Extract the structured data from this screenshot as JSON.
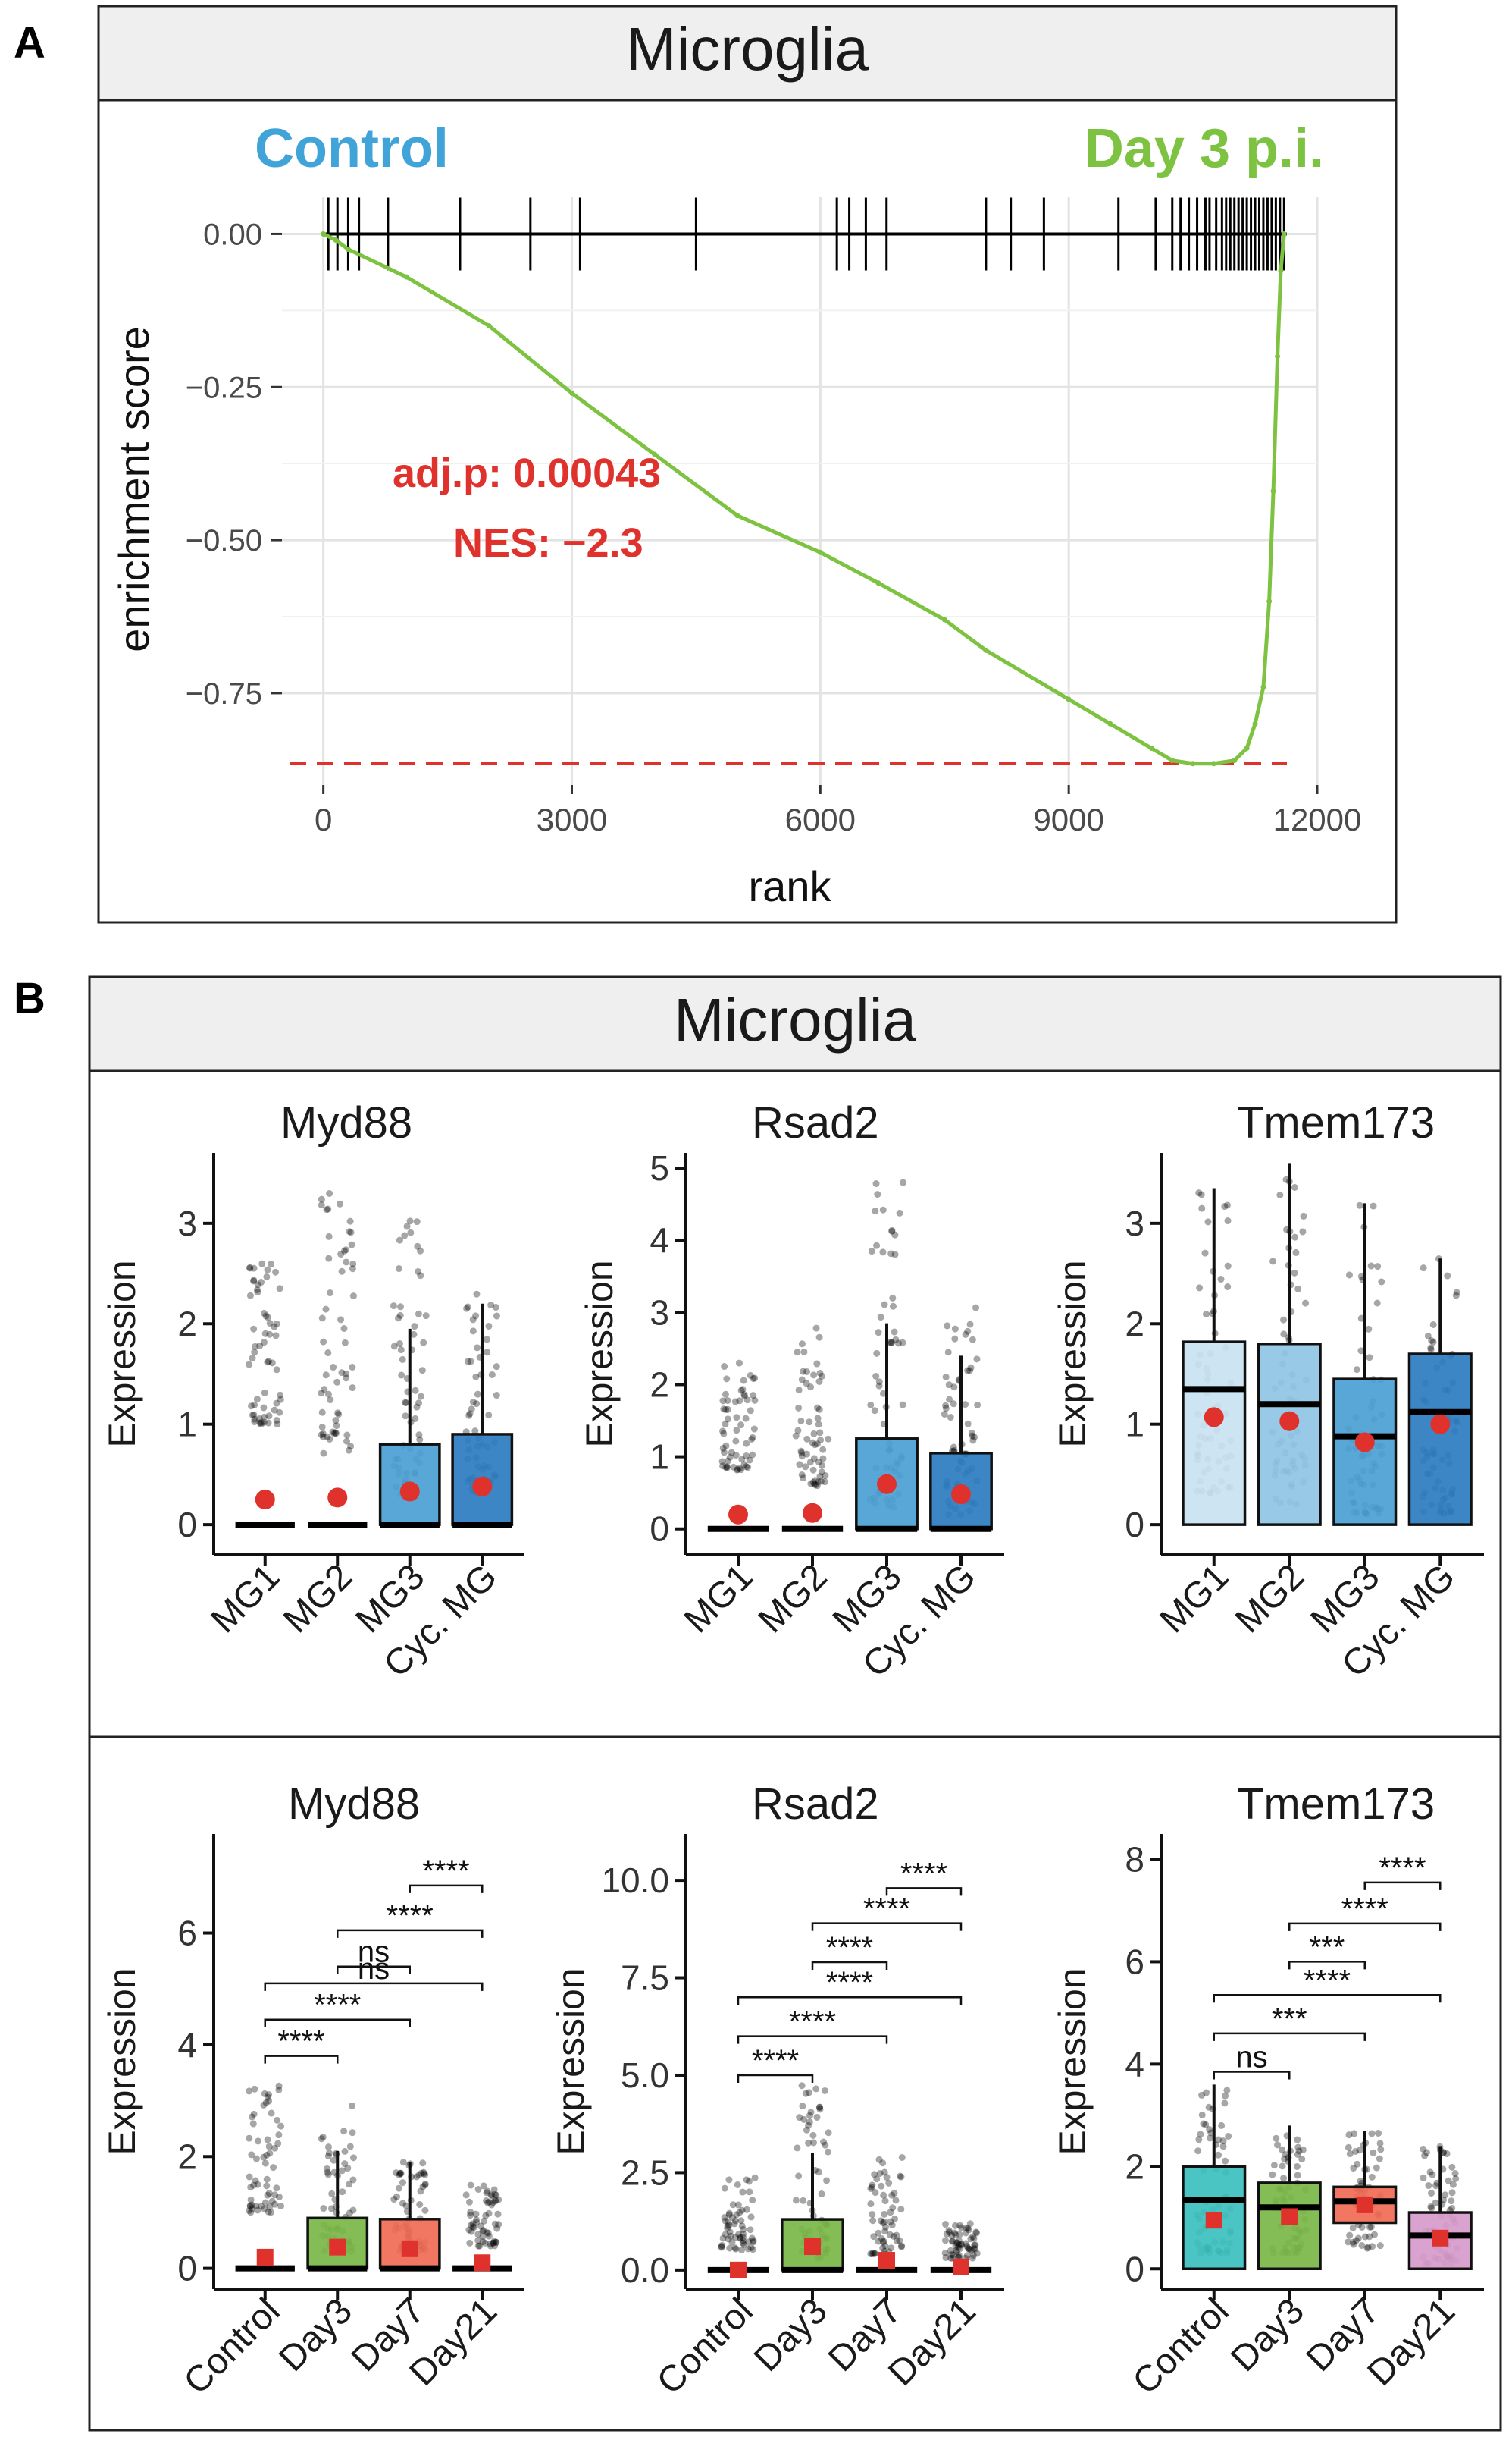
{
  "panel_a": {
    "letter": "A",
    "strip_title": "Microglia",
    "left_label": "Control",
    "right_label": "Day 3 p.i.",
    "annotation_p": "adj.p:  0.00043",
    "annotation_nes": "NES: −2.3",
    "colors": {
      "control": "#40a4d8",
      "day3": "#7ec242",
      "stat": "#e0322d"
    }
  },
  "panel_b": {
    "letter": "B",
    "strip_title": "Microglia",
    "colors": {
      "point": "#e0322d",
      "box_edge": "#111111"
    }
  },
  "chart_data": [
    {
      "id": "gsea",
      "type": "line",
      "title": "Microglia",
      "xlabel": "rank",
      "ylabel": "enrichment score",
      "xlim": [
        -500,
        12000
      ],
      "ylim": [
        -0.9,
        0.06
      ],
      "xticks": [
        0,
        3000,
        6000,
        9000,
        12000
      ],
      "xtick_labels": [
        "0",
        "3000",
        "6000",
        "9000",
        "12000"
      ],
      "yticks": [
        0.0,
        -0.25,
        -0.5,
        -0.75
      ],
      "ytick_labels": [
        "0.00",
        "−0.25",
        "−0.50",
        "−0.75"
      ],
      "x": [
        0,
        150,
        300,
        1000,
        2000,
        3000,
        4000,
        5000,
        6000,
        6700,
        7500,
        8000,
        9000,
        9500,
        10000,
        10250,
        10500,
        10750,
        11000,
        11150,
        11250,
        11350,
        11420,
        11470,
        11520,
        11560,
        11600
      ],
      "y": [
        0.0,
        -0.01,
        -0.025,
        -0.07,
        -0.15,
        -0.26,
        -0.36,
        -0.46,
        -0.52,
        -0.57,
        -0.63,
        -0.68,
        -0.76,
        -0.8,
        -0.84,
        -0.86,
        -0.865,
        -0.865,
        -0.86,
        -0.84,
        -0.8,
        -0.74,
        -0.6,
        -0.42,
        -0.2,
        -0.06,
        0.0
      ],
      "hits": [
        60,
        170,
        300,
        430,
        780,
        1650,
        2500,
        3100,
        4500,
        6200,
        6350,
        6550,
        6800,
        8000,
        8300,
        8700,
        9600,
        10050,
        10250,
        10350,
        10450,
        10550,
        10650,
        10700,
        10780,
        10850,
        10900,
        10950,
        11000,
        11050,
        11100,
        11150,
        11200,
        11250,
        11300,
        11350,
        11400,
        11450,
        11500,
        11550,
        11600
      ],
      "min_es": -0.865
    },
    {
      "id": "cl-myd88",
      "type": "box",
      "title": "Myd88",
      "ylabel": "Expression",
      "ylim": [
        -0.15,
        3.55
      ],
      "yticks": [
        0,
        1,
        2,
        3
      ],
      "ytick_labels": [
        "0",
        "1",
        "2",
        "3"
      ],
      "categories": [
        "MG1",
        "MG2",
        "MG3",
        "Cyc. MG"
      ],
      "box_colors": [
        "#c9e3f2",
        "#8fc4e4",
        "#4b9fd4",
        "#2c7cc0"
      ],
      "boxes": [
        {
          "q1": 0,
          "median": 0,
          "q3": 0,
          "whisker_high": 0
        },
        {
          "q1": 0,
          "median": 0,
          "q3": 0,
          "whisker_high": 0
        },
        {
          "q1": 0,
          "median": 0,
          "q3": 0.8,
          "whisker_high": 1.95
        },
        {
          "q1": 0,
          "median": 0,
          "q3": 0.9,
          "whisker_high": 2.2
        }
      ],
      "means": [
        0.25,
        0.27,
        0.33,
        0.38
      ],
      "point_ranges": [
        [
          1.0,
          2.6
        ],
        [
          0.7,
          3.35
        ],
        [
          0.3,
          3.1
        ],
        [
          0.3,
          2.3
        ]
      ],
      "mean_marker": "circle",
      "comparisons": []
    },
    {
      "id": "cl-rsad2",
      "type": "box",
      "title": "Rsad2",
      "ylabel": "Expression",
      "ylim": [
        -0.15,
        5.0
      ],
      "yticks": [
        0,
        1,
        2,
        3,
        4,
        5
      ],
      "ytick_labels": [
        "0",
        "1",
        "2",
        "3",
        "4",
        "5"
      ],
      "categories": [
        "MG1",
        "MG2",
        "MG3",
        "Cyc. MG"
      ],
      "box_colors": [
        "#c9e3f2",
        "#8fc4e4",
        "#4b9fd4",
        "#2c7cc0"
      ],
      "boxes": [
        {
          "q1": 0,
          "median": 0,
          "q3": 0,
          "whisker_high": 0
        },
        {
          "q1": 0,
          "median": 0,
          "q3": 0,
          "whisker_high": 0
        },
        {
          "q1": 0,
          "median": 0,
          "q3": 1.25,
          "whisker_high": 2.85
        },
        {
          "q1": 0,
          "median": 0,
          "q3": 1.05,
          "whisker_high": 2.4
        }
      ],
      "means": [
        0.2,
        0.22,
        0.62,
        0.48
      ],
      "point_ranges": [
        [
          0.8,
          2.3
        ],
        [
          0.6,
          2.8
        ],
        [
          0.3,
          4.8
        ],
        [
          0.2,
          3.2
        ]
      ],
      "mean_marker": "circle",
      "comparisons": []
    },
    {
      "id": "cl-tmem173",
      "type": "box",
      "title": "Tmem173",
      "ylabel": "Expression",
      "ylim": [
        -0.15,
        3.55
      ],
      "yticks": [
        0,
        1,
        2,
        3
      ],
      "ytick_labels": [
        "0",
        "1",
        "2",
        "3"
      ],
      "categories": [
        "MG1",
        "MG2",
        "MG3",
        "Cyc. MG"
      ],
      "box_colors": [
        "#c9e3f2",
        "#8fc4e4",
        "#4b9fd4",
        "#2c7cc0"
      ],
      "boxes": [
        {
          "q1": 0,
          "median": 1.35,
          "q3": 1.82,
          "whisker_high": 3.35
        },
        {
          "q1": 0,
          "median": 1.2,
          "q3": 1.8,
          "whisker_high": 3.6
        },
        {
          "q1": 0,
          "median": 0.88,
          "q3": 1.45,
          "whisker_high": 3.2
        },
        {
          "q1": 0,
          "median": 1.12,
          "q3": 1.7,
          "whisker_high": 2.65
        }
      ],
      "means": [
        1.07,
        1.03,
        0.82,
        1.0
      ],
      "point_ranges": [
        [
          0.3,
          3.4
        ],
        [
          0.2,
          3.6
        ],
        [
          0.1,
          3.2
        ],
        [
          0.1,
          2.7
        ]
      ],
      "mean_marker": "circle",
      "comparisons": []
    },
    {
      "id": "tp-myd88",
      "type": "box",
      "title": "Myd88",
      "ylabel": "Expression",
      "ylim": [
        -0.1,
        7.5
      ],
      "yticks": [
        0,
        2,
        4,
        6
      ],
      "ytick_labels": [
        "0",
        "2",
        "4",
        "6"
      ],
      "categories": [
        "Control",
        "Day3",
        "Day7",
        "Day21"
      ],
      "box_colors": [
        "#3cbfbf",
        "#7ab648",
        "#f06b56",
        "#d79acb"
      ],
      "boxes": [
        {
          "q1": 0,
          "median": 0,
          "q3": 0,
          "whisker_high": 0
        },
        {
          "q1": 0,
          "median": 0,
          "q3": 0.9,
          "whisker_high": 2.1
        },
        {
          "q1": 0,
          "median": 0,
          "q3": 0.88,
          "whisker_high": 1.9
        },
        {
          "q1": 0,
          "median": 0,
          "q3": 0,
          "whisker_high": 0
        }
      ],
      "means": [
        0.2,
        0.38,
        0.35,
        0.1
      ],
      "point_ranges": [
        [
          1.0,
          3.3
        ],
        [
          0.3,
          3.0
        ],
        [
          0.3,
          1.9
        ],
        [
          0.4,
          1.5
        ]
      ],
      "mean_marker": "square",
      "comparisons": [
        {
          "from": 0,
          "to": 1,
          "y": 3.8,
          "label": "****"
        },
        {
          "from": 0,
          "to": 2,
          "y": 4.45,
          "label": "****"
        },
        {
          "from": 0,
          "to": 3,
          "y": 5.1,
          "label": "ns"
        },
        {
          "from": 1,
          "to": 2,
          "y": 5.4,
          "label": "ns"
        },
        {
          "from": 1,
          "to": 3,
          "y": 6.05,
          "label": "****"
        },
        {
          "from": 2,
          "to": 3,
          "y": 6.85,
          "label": "****"
        }
      ]
    },
    {
      "id": "tp-rsad2",
      "type": "box",
      "title": "Rsad2",
      "ylabel": "Expression",
      "ylim": [
        -0.1,
        10.8
      ],
      "yticks": [
        0,
        2.5,
        5.0,
        7.5,
        10.0
      ],
      "ytick_labels": [
        "0.0",
        "2.5",
        "5.0",
        "7.5",
        "10.0"
      ],
      "categories": [
        "Control",
        "Day3",
        "Day7",
        "Day21"
      ],
      "box_colors": [
        "#3cbfbf",
        "#7ab648",
        "#f06b56",
        "#d79acb"
      ],
      "boxes": [
        {
          "q1": 0,
          "median": 0,
          "q3": 0,
          "whisker_high": 0
        },
        {
          "q1": 0,
          "median": 0,
          "q3": 1.3,
          "whisker_high": 3.0
        },
        {
          "q1": 0,
          "median": 0,
          "q3": 0,
          "whisker_high": 0
        },
        {
          "q1": 0,
          "median": 0,
          "q3": 0,
          "whisker_high": 0
        }
      ],
      "means": [
        0.0,
        0.6,
        0.25,
        0.08
      ],
      "point_ranges": [
        [
          0.5,
          2.4
        ],
        [
          0.3,
          5.0
        ],
        [
          0.4,
          2.9
        ],
        [
          0.3,
          1.2
        ]
      ],
      "mean_marker": "square",
      "comparisons": [
        {
          "from": 0,
          "to": 1,
          "y": 5.0,
          "label": "****"
        },
        {
          "from": 0,
          "to": 2,
          "y": 6.0,
          "label": "****"
        },
        {
          "from": 0,
          "to": 3,
          "y": 7.0,
          "label": "****"
        },
        {
          "from": 1,
          "to": 2,
          "y": 7.9,
          "label": "****"
        },
        {
          "from": 1,
          "to": 3,
          "y": 8.9,
          "label": "****"
        },
        {
          "from": 2,
          "to": 3,
          "y": 9.8,
          "label": "****"
        }
      ]
    },
    {
      "id": "tp-tmem173",
      "type": "box",
      "title": "Tmem173",
      "ylabel": "Expression",
      "ylim": [
        -0.1,
        8.2
      ],
      "yticks": [
        0,
        2,
        4,
        6,
        8
      ],
      "ytick_labels": [
        "0",
        "2",
        "4",
        "6",
        "8"
      ],
      "categories": [
        "Control",
        "Day3",
        "Day7",
        "Day21"
      ],
      "box_colors": [
        "#3cbfbf",
        "#7ab648",
        "#f06b56",
        "#d79acb"
      ],
      "boxes": [
        {
          "q1": 0,
          "median": 1.35,
          "q3": 2.0,
          "whisker_high": 3.6
        },
        {
          "q1": 0,
          "median": 1.2,
          "q3": 1.68,
          "whisker_high": 2.8
        },
        {
          "q1": 0.9,
          "median": 1.32,
          "q3": 1.6,
          "whisker_high": 2.7
        },
        {
          "q1": 0,
          "median": 0.65,
          "q3": 1.1,
          "whisker_high": 2.4
        }
      ],
      "means": [
        0.95,
        1.02,
        1.25,
        0.6
      ],
      "point_ranges": [
        [
          0.3,
          3.6
        ],
        [
          0.3,
          2.8
        ],
        [
          0.4,
          2.7
        ],
        [
          0.1,
          2.4
        ]
      ],
      "mean_marker": "square",
      "comparisons": [
        {
          "from": 0,
          "to": 1,
          "y": 3.85,
          "label": "ns"
        },
        {
          "from": 0,
          "to": 2,
          "y": 4.6,
          "label": "***"
        },
        {
          "from": 0,
          "to": 3,
          "y": 5.35,
          "label": "****"
        },
        {
          "from": 1,
          "to": 2,
          "y": 6.0,
          "label": "***"
        },
        {
          "from": 1,
          "to": 3,
          "y": 6.75,
          "label": "****"
        },
        {
          "from": 2,
          "to": 3,
          "y": 7.55,
          "label": "****"
        }
      ]
    }
  ]
}
